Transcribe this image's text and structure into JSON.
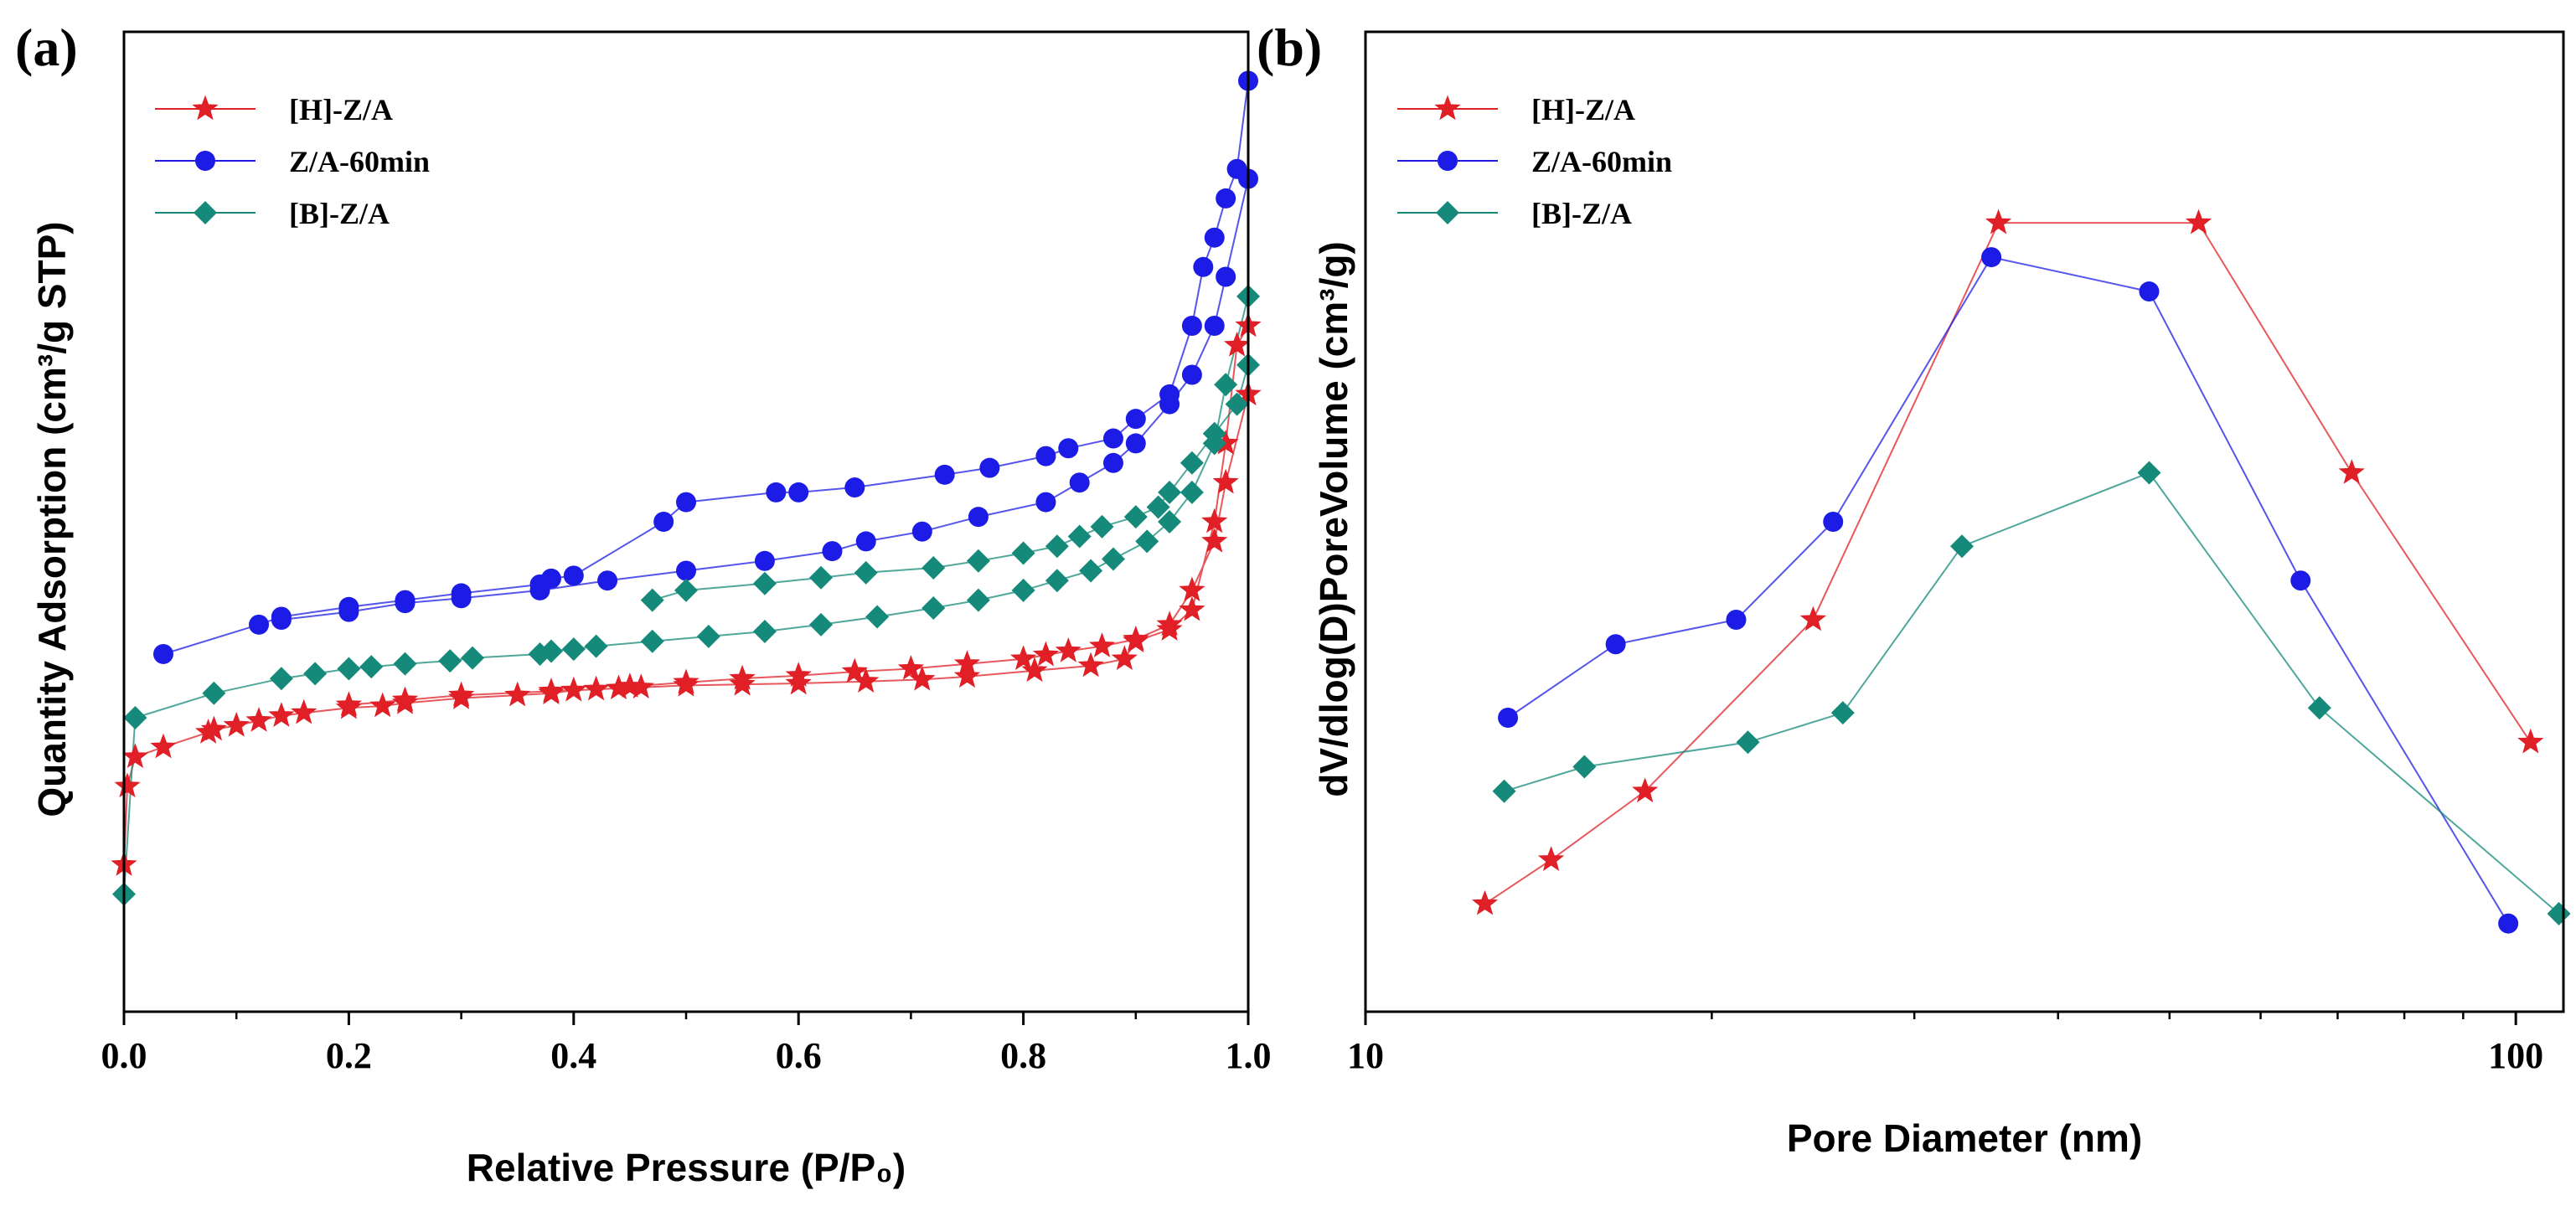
{
  "colors": {
    "h": "#e01f26",
    "z": "#1c1ce6",
    "b": "#168a7a",
    "axis": "#000000"
  },
  "chart_data": [
    {
      "type": "line",
      "panel_label": "(a)",
      "title": "",
      "xlabel": "Relative Pressure (P/P₀)",
      "ylabel": "Quantity Adsorption (cm³/g STP)",
      "xlim": [
        0,
        1.0
      ],
      "ylim": [
        0,
        100
      ],
      "xticks": [
        0.0,
        0.2,
        0.4,
        0.6,
        0.8,
        1.0
      ],
      "xtick_labels": [
        "0.0",
        "0.2",
        "0.4",
        "0.6",
        "0.8",
        "1.0"
      ],
      "legend_position": "top-left",
      "series": [
        {
          "name": "[H]-Z/A",
          "color_key": "h",
          "marker": "star",
          "x": [
            0.0,
            0.003,
            0.01,
            0.035,
            0.075,
            0.08,
            0.1,
            0.12,
            0.14,
            0.16,
            0.2,
            0.23,
            0.25,
            0.3,
            0.35,
            0.38,
            0.4,
            0.44,
            0.45,
            0.5,
            0.55,
            0.6,
            0.65,
            0.7,
            0.75,
            0.8,
            0.82,
            0.84,
            0.87,
            0.9,
            0.93,
            0.95,
            0.97,
            0.98,
            1.0,
            1.0,
            0.99,
            0.98,
            0.97,
            0.95,
            0.93,
            0.9,
            0.89,
            0.86,
            0.81,
            0.75,
            0.71,
            0.66,
            0.6,
            0.55,
            0.5,
            0.46,
            0.42,
            0.38,
            0.3,
            0.25,
            0.2
          ],
          "y": [
            15,
            23,
            26,
            27,
            28.5,
            28.8,
            29.2,
            29.7,
            30.2,
            30.5,
            31,
            31.2,
            31.5,
            32,
            32.3,
            32.5,
            32.8,
            33,
            33.2,
            33.6,
            34,
            34.3,
            34.7,
            35,
            35.5,
            36,
            36.4,
            36.8,
            37.3,
            38,
            39.5,
            43,
            48,
            54,
            63,
            70,
            68,
            58,
            50,
            41,
            39,
            37.8,
            36,
            35.3,
            34.8,
            34.2,
            33.9,
            33.7,
            33.5,
            33.4,
            33.3,
            33.1,
            32.9,
            32.7,
            32.3,
            31.8,
            31.3
          ]
        },
        {
          "name": "Z/A-60min",
          "color_key": "z",
          "marker": "circle",
          "x": [
            0.035,
            0.12,
            0.14,
            0.2,
            0.25,
            0.3,
            0.37,
            0.38,
            0.4,
            0.48,
            0.5,
            0.58,
            0.6,
            0.65,
            0.73,
            0.77,
            0.82,
            0.84,
            0.88,
            0.9,
            0.93,
            0.95,
            0.96,
            0.97,
            0.98,
            0.99,
            1.0,
            1.0,
            0.98,
            0.97,
            0.95,
            0.93,
            0.9,
            0.88,
            0.85,
            0.82,
            0.76,
            0.71,
            0.66,
            0.63,
            0.57,
            0.5,
            0.43,
            0.37,
            0.3,
            0.25,
            0.2,
            0.14
          ],
          "y": [
            36.5,
            39.5,
            40.3,
            41.3,
            42,
            42.7,
            43.6,
            44.2,
            44.5,
            50,
            52,
            53,
            53,
            53.5,
            54.8,
            55.5,
            56.7,
            57.5,
            58.5,
            60.5,
            63,
            70,
            76,
            79,
            83,
            86,
            95,
            85,
            75,
            70,
            65,
            62,
            58,
            56,
            54,
            52,
            50.5,
            49,
            48,
            47,
            46,
            45,
            44,
            43,
            42.2,
            41.7,
            40.8,
            40
          ]
        },
        {
          "name": "[B]-Z/A",
          "color_key": "b",
          "marker": "diamond",
          "x": [
            0.0,
            0.01,
            0.08,
            0.14,
            0.17,
            0.2,
            0.22,
            0.25,
            0.29,
            0.31,
            0.37,
            0.38,
            0.4,
            0.42,
            0.47,
            0.52,
            0.57,
            0.62,
            0.67,
            0.72,
            0.76,
            0.8,
            0.83,
            0.86,
            0.88,
            0.91,
            0.93,
            0.95,
            0.97,
            0.98,
            1.0,
            1.0,
            0.99,
            0.97,
            0.95,
            0.93,
            0.92,
            0.9,
            0.87,
            0.85,
            0.83,
            0.8,
            0.76,
            0.72,
            0.66,
            0.62,
            0.57,
            0.5,
            0.47
          ],
          "y": [
            12,
            30,
            32.5,
            34,
            34.5,
            35,
            35.2,
            35.5,
            35.8,
            36.1,
            36.5,
            36.8,
            37,
            37.3,
            37.8,
            38.3,
            38.8,
            39.5,
            40.3,
            41.2,
            42,
            43,
            44,
            45,
            46.2,
            48,
            50,
            53,
            58,
            64,
            73,
            66,
            62,
            59,
            56,
            53,
            51.5,
            50.5,
            49.5,
            48.5,
            47.5,
            46.8,
            46,
            45.3,
            44.8,
            44.3,
            43.7,
            43,
            42
          ]
        }
      ]
    },
    {
      "type": "line",
      "panel_label": "(b)",
      "title": "",
      "xlabel": "Pore Diameter (nm)",
      "ylabel": "dV/dlog(D)PoreVolume (cm³/g)",
      "xscale": "log",
      "xlim": [
        10,
        110
      ],
      "ylim": [
        0,
        100
      ],
      "xticks": [
        10,
        100
      ],
      "xtick_labels": [
        "10",
        "100"
      ],
      "legend_position": "top-left",
      "series": [
        {
          "name": "[H]-Z/A",
          "color_key": "h",
          "marker": "star",
          "x": [
            12.7,
            14.5,
            17.5,
            24.5,
            35.5,
            53.0,
            72.0,
            103.0
          ],
          "y": [
            11,
            15.5,
            22.5,
            40,
            80.5,
            80.5,
            55,
            27.5
          ]
        },
        {
          "name": "Z/A-60min",
          "color_key": "z",
          "marker": "circle",
          "x": [
            13.3,
            16.5,
            21.0,
            25.5,
            35.0,
            48.0,
            65.0,
            98.5
          ],
          "y": [
            30,
            37.5,
            40,
            50,
            77,
            73.5,
            44,
            9
          ]
        },
        {
          "name": "[B]-Z/A",
          "color_key": "b",
          "marker": "diamond",
          "x": [
            13.2,
            15.5,
            21.5,
            26.0,
            33.0,
            48.0,
            67.5,
            109.0
          ],
          "y": [
            22.5,
            25,
            27.5,
            30.5,
            47.5,
            55,
            31,
            10
          ]
        }
      ]
    }
  ]
}
